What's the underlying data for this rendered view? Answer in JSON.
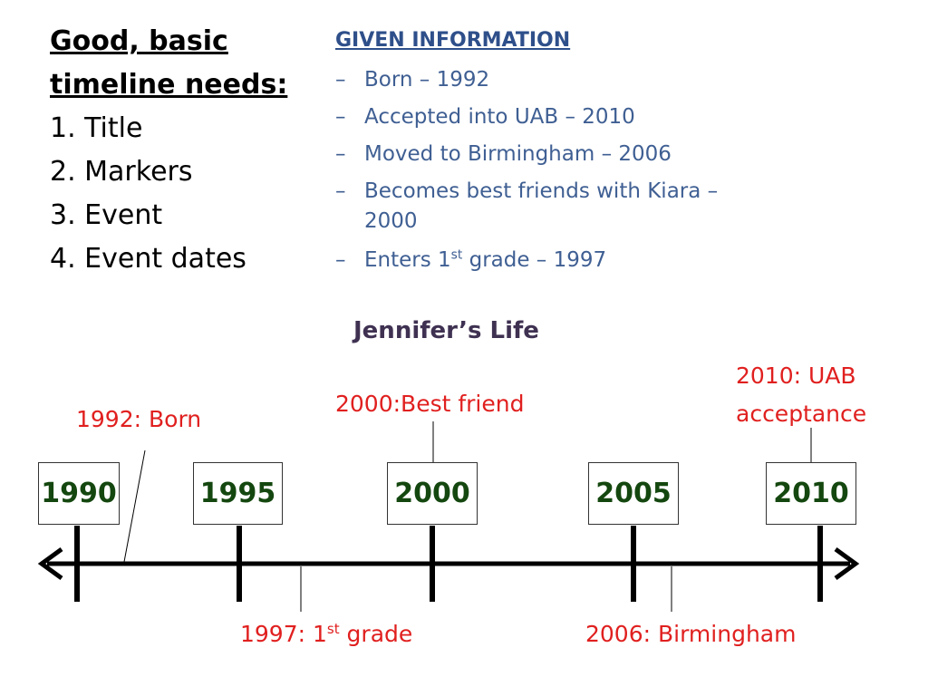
{
  "left": {
    "heading": [
      "Good, basic",
      "timeline needs:"
    ],
    "items": [
      "1. Title",
      "2. Markers",
      "3. Event",
      "4. Event dates"
    ]
  },
  "given": {
    "heading": "GIVEN INFORMATION",
    "bullet": "–",
    "items": [
      [
        "Born – 1992"
      ],
      [
        "Accepted into UAB – 2010"
      ],
      [
        "Moved to Birmingham – 2006"
      ],
      [
        "Becomes best friends with Kiara – 2000"
      ],
      [
        "Enters 1",
        "st",
        " grade – 1997"
      ]
    ]
  },
  "timeline": {
    "title": "Jennifer’s Life",
    "markers": [
      "1990",
      "1995",
      "2000",
      "2005",
      "2010"
    ],
    "events": [
      [
        "1992: Born"
      ],
      [
        "2000:Best friend"
      ],
      [
        "2010: UAB acceptance"
      ],
      [
        "1997: 1",
        "st",
        " grade"
      ],
      [
        "2006: Birmingham"
      ]
    ]
  }
}
